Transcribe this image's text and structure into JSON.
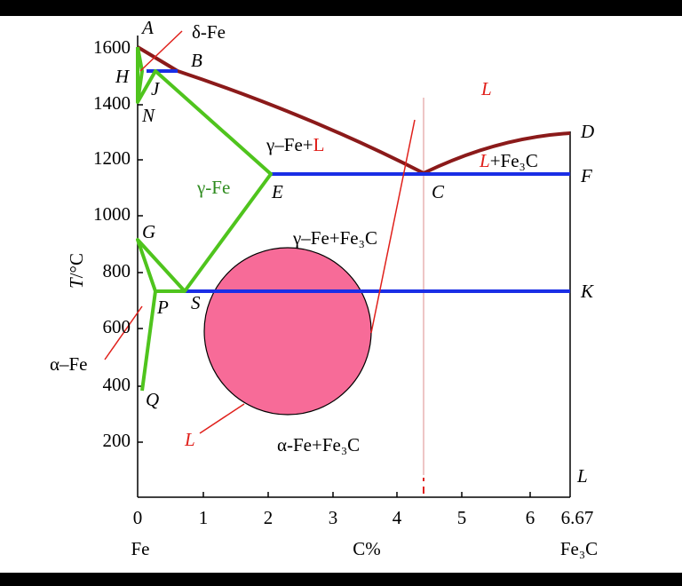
{
  "axis": {
    "y_title": [
      "T",
      "/°C"
    ],
    "y_ticks": [
      "1600",
      "1400",
      "1200",
      "1000",
      "800",
      "600",
      "400",
      "200"
    ],
    "x_ticks": [
      "0",
      "1",
      "2",
      "3",
      "4",
      "5",
      "6",
      "6.67"
    ],
    "x_title": "C%",
    "x_left_end": "Fe",
    "x_right_end": "Fe₃C"
  },
  "points": {
    "A": "A",
    "B": "B",
    "C": "C",
    "D": "D",
    "E": "E",
    "F": "F",
    "G": "G",
    "H": "H",
    "J": "J",
    "K": "K",
    "N": "N",
    "P": "P",
    "Q": "Q",
    "S": "S",
    "L": "L"
  },
  "phases": {
    "delta_fe": "δ-Fe",
    "liquid": "L",
    "gamma_liquid": [
      "γ–Fe+",
      "L"
    ],
    "liquid_fe3c": [
      "L",
      "+Fe₃C"
    ],
    "gamma_fe": "γ-Fe",
    "gamma_fe3c": "γ–Fe+Fe₃C",
    "alpha_fe": "α–Fe",
    "alpha_fe3c": "α-Fe+Fe₃C",
    "annotation": "L"
  }
}
